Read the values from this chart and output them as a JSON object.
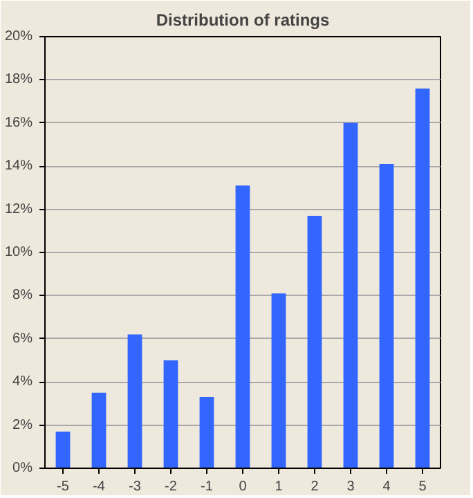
{
  "chart_data": {
    "type": "bar",
    "title": "Distribution of ratings",
    "categories": [
      "-5",
      "-4",
      "-3",
      "-2",
      "-1",
      "0",
      "1",
      "2",
      "3",
      "4",
      "5"
    ],
    "values": [
      1.7,
      3.5,
      6.2,
      5.0,
      3.3,
      13.1,
      8.1,
      11.7,
      16.0,
      14.1,
      17.6
    ],
    "color": "#3366ff",
    "ylim": [
      0,
      20
    ],
    "yticks": [
      {
        "value": 0,
        "label": "0%"
      },
      {
        "value": 2,
        "label": "2%"
      },
      {
        "value": 4,
        "label": "4%"
      },
      {
        "value": 6,
        "label": "6%"
      },
      {
        "value": 8,
        "label": "8%"
      },
      {
        "value": 10,
        "label": "10%"
      },
      {
        "value": 12,
        "label": "12%"
      },
      {
        "value": 14,
        "label": "14%"
      },
      {
        "value": 16,
        "label": "16%"
      },
      {
        "value": 18,
        "label": "18%"
      },
      {
        "value": 20,
        "label": "20%"
      }
    ],
    "grid": "y"
  }
}
